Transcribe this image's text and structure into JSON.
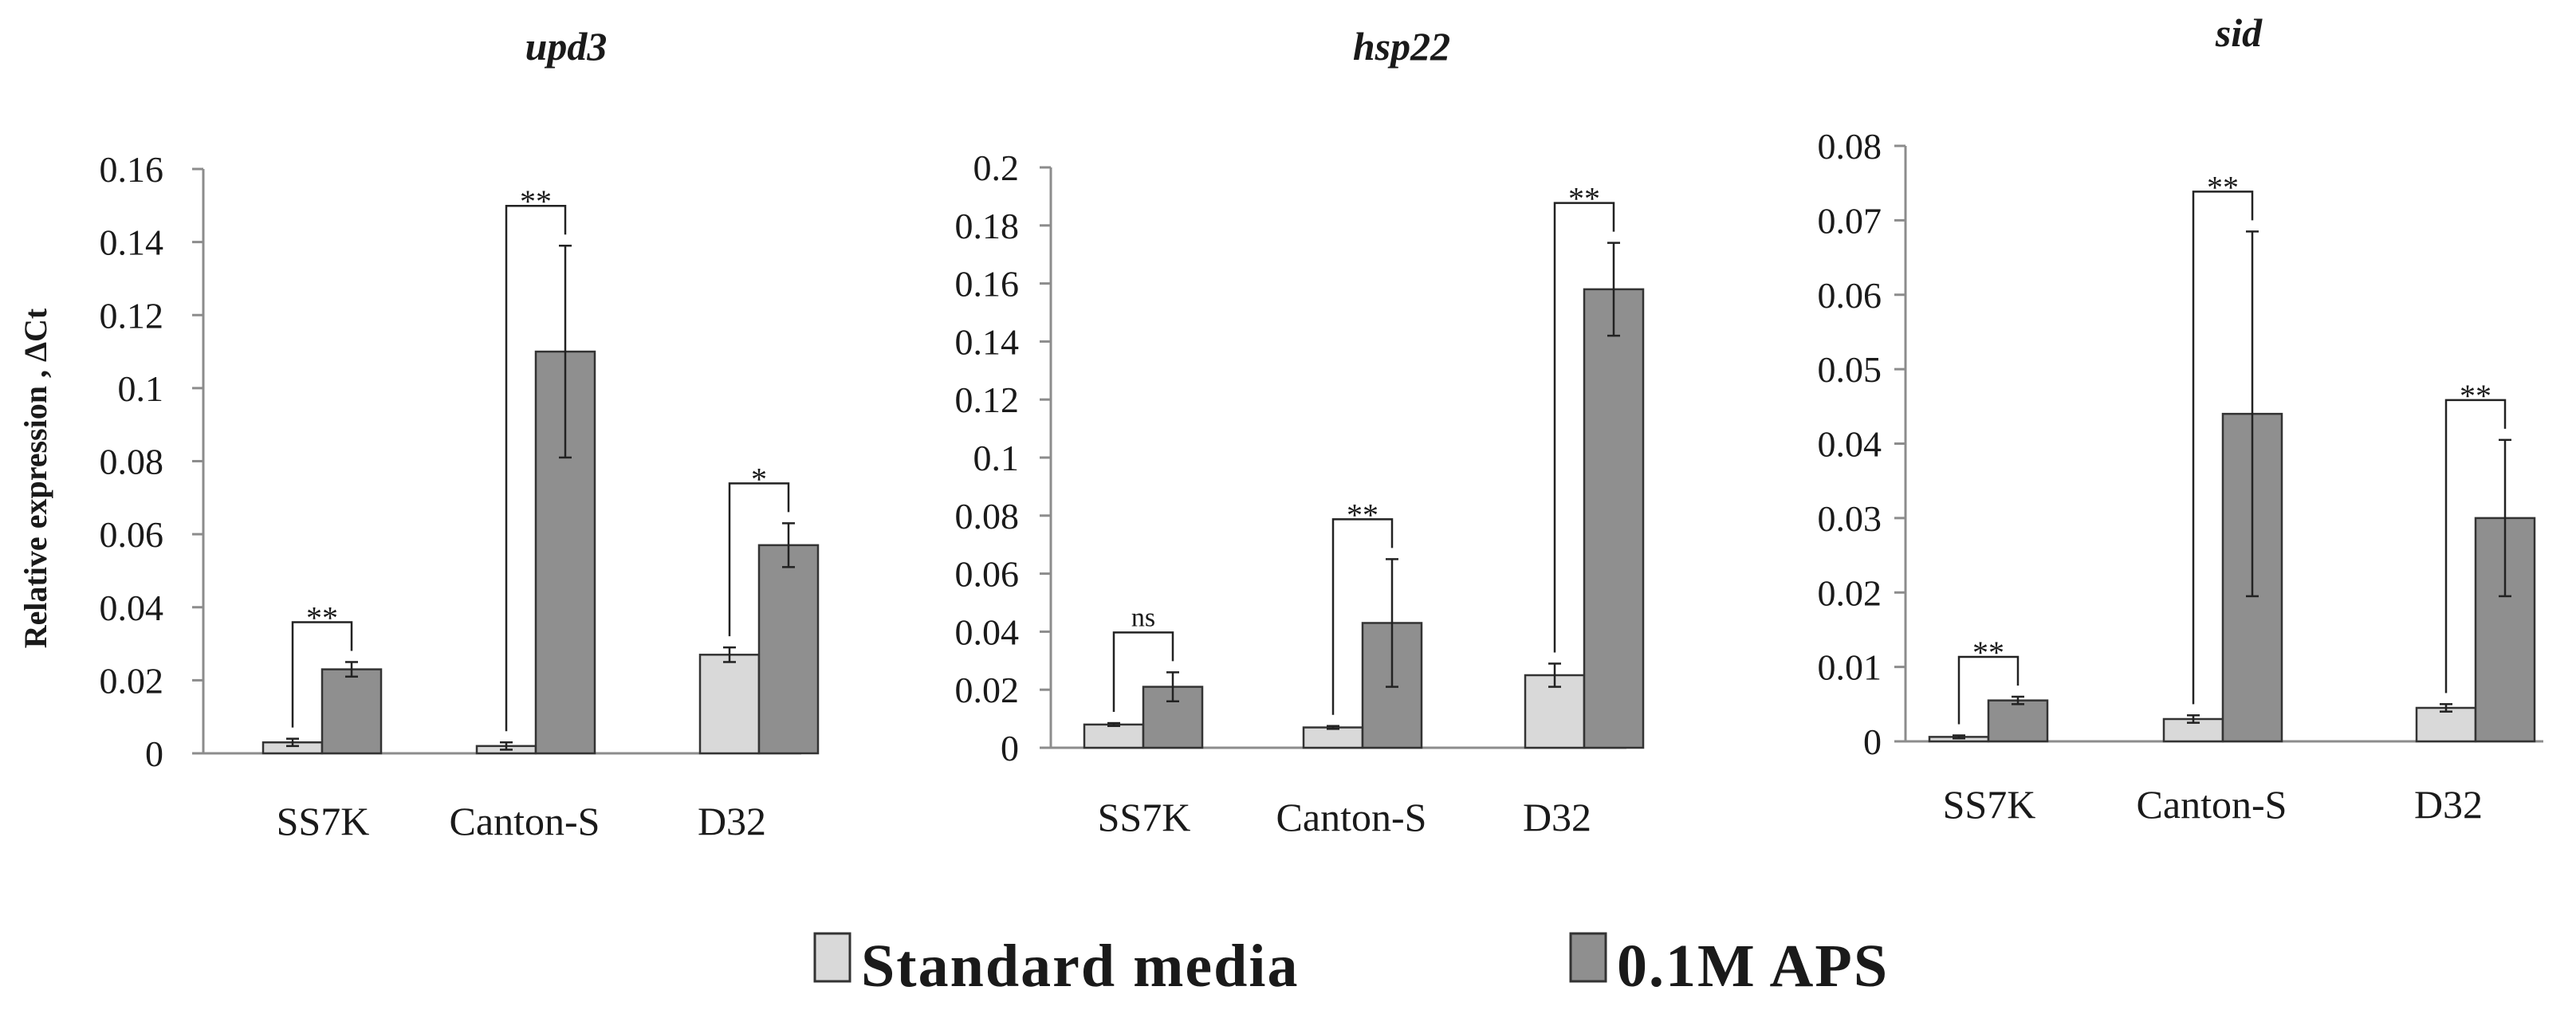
{
  "colors": {
    "standard": "#d9d9d9",
    "aps": "#8f8f8f",
    "stroke": "#333333",
    "axis": "#8c8c8c"
  },
  "y_axis_label": "Relative expression , ΔCt",
  "legend": {
    "entries": [
      {
        "label": "Standard media",
        "color": "#d9d9d9"
      },
      {
        "label": "0.1M APS",
        "color": "#8f8f8f"
      }
    ]
  },
  "chart_data": [
    {
      "type": "bar",
      "title": "upd3",
      "ylabel": "Relative expression , ΔCt",
      "ylim": [
        0,
        0.16
      ],
      "yticks": [
        "0",
        "0.02",
        "0.04",
        "0.06",
        "0.08",
        "0.1",
        "0.12",
        "0.14",
        "0.16"
      ],
      "categories": [
        "SS7K",
        "Canton-S",
        "D32"
      ],
      "series": [
        {
          "name": "Standard media",
          "values": [
            0.003,
            0.002,
            0.027
          ],
          "errors": [
            0.001,
            0.001,
            0.002
          ]
        },
        {
          "name": "0.1M APS",
          "values": [
            0.023,
            0.11,
            0.057
          ],
          "errors": [
            0.002,
            0.029,
            0.006
          ]
        }
      ],
      "significance": [
        "**",
        "**",
        "*"
      ]
    },
    {
      "type": "bar",
      "title": "hsp22",
      "ylabel": "",
      "ylim": [
        0,
        0.2
      ],
      "yticks": [
        "0",
        "0.02",
        "0.04",
        "0.06",
        "0.08",
        "0.1",
        "0.12",
        "0.14",
        "0.16",
        "0.18",
        "0.2"
      ],
      "categories": [
        "SS7K",
        "Canton-S",
        "D32"
      ],
      "series": [
        {
          "name": "Standard media",
          "values": [
            0.008,
            0.007,
            0.025
          ],
          "errors": [
            0.0005,
            0.0005,
            0.004
          ]
        },
        {
          "name": "0.1M APS",
          "values": [
            0.021,
            0.043,
            0.158
          ],
          "errors": [
            0.005,
            0.022,
            0.016
          ]
        }
      ],
      "significance": [
        "ns",
        "**",
        "**"
      ]
    },
    {
      "type": "bar",
      "title": "sid",
      "ylabel": "",
      "ylim": [
        0,
        0.08
      ],
      "yticks": [
        "0",
        "0.01",
        "0.02",
        "0.03",
        "0.04",
        "0.05",
        "0.06",
        "0.07",
        "0.08"
      ],
      "categories": [
        "SS7K",
        "Canton-S",
        "D32"
      ],
      "series": [
        {
          "name": "Standard media",
          "values": [
            0.0006,
            0.003,
            0.0045
          ],
          "errors": [
            0.0002,
            0.0005,
            0.0005
          ]
        },
        {
          "name": "0.1M APS",
          "values": [
            0.0055,
            0.044,
            0.03
          ],
          "errors": [
            0.0005,
            0.0245,
            0.0105
          ]
        }
      ],
      "significance": [
        "**",
        "**",
        "**"
      ]
    }
  ]
}
